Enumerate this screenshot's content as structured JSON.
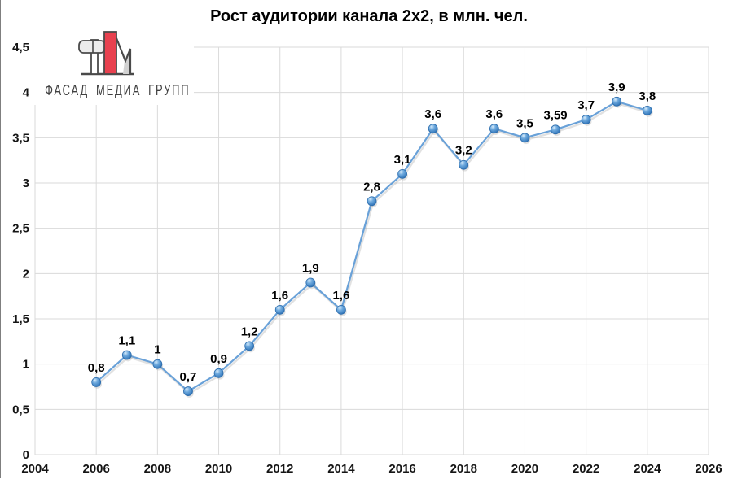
{
  "logo": {
    "text": "ФАСАД МЕДИА ГРУПП",
    "accent_color": "#e8414f",
    "outline_color": "#4a4a4a"
  },
  "chart_data": {
    "type": "line",
    "title": "Рост аудитории канала 2х2, в млн. чел.",
    "xlabel": "",
    "ylabel": "",
    "x": [
      2006,
      2007,
      2008,
      2009,
      2010,
      2011,
      2012,
      2013,
      2014,
      2015,
      2016,
      2017,
      2018,
      2019,
      2020,
      2021,
      2022,
      2023,
      2024
    ],
    "values": [
      0.8,
      1.1,
      1.0,
      0.7,
      0.9,
      1.2,
      1.6,
      1.9,
      1.6,
      2.8,
      3.1,
      3.6,
      3.2,
      3.6,
      3.5,
      3.59,
      3.7,
      3.9,
      3.8
    ],
    "point_labels": [
      "0,8",
      "1,1",
      "1",
      "0,7",
      "0,9",
      "1,2",
      "1,6",
      "1,9",
      "1,6",
      "2,8",
      "3,1",
      "3,6",
      "3,2",
      "3,6",
      "3,5",
      "3,59",
      "3,7",
      "3,9",
      "3,8"
    ],
    "xlim": [
      2004,
      2026
    ],
    "ylim": [
      0,
      4.5
    ],
    "x_ticks": {
      "values": [
        2004,
        2006,
        2008,
        2010,
        2012,
        2014,
        2016,
        2018,
        2020,
        2022,
        2024,
        2026
      ],
      "labels": [
        "2004",
        "2006",
        "2008",
        "2010",
        "2012",
        "2014",
        "2016",
        "2018",
        "2020",
        "2022",
        "2024",
        "2026"
      ]
    },
    "y_ticks": {
      "values": [
        0,
        0.5,
        1,
        1.5,
        2,
        2.5,
        3,
        3.5,
        4,
        4.5
      ],
      "labels": [
        "0",
        "0,5",
        "1",
        "1,5",
        "2",
        "2,5",
        "3",
        "3,5",
        "4",
        "4,5"
      ]
    },
    "grid": true,
    "legend": "none",
    "colors": {
      "line": "#69a1d8",
      "marker_light": "#d8ecfb",
      "marker_mid": "#6faade",
      "marker_dark": "#2a62a0",
      "marker_edge": "#2e6eae",
      "grid": "#dadada",
      "text": "#000000",
      "shadow": "#9a9a9a"
    }
  }
}
